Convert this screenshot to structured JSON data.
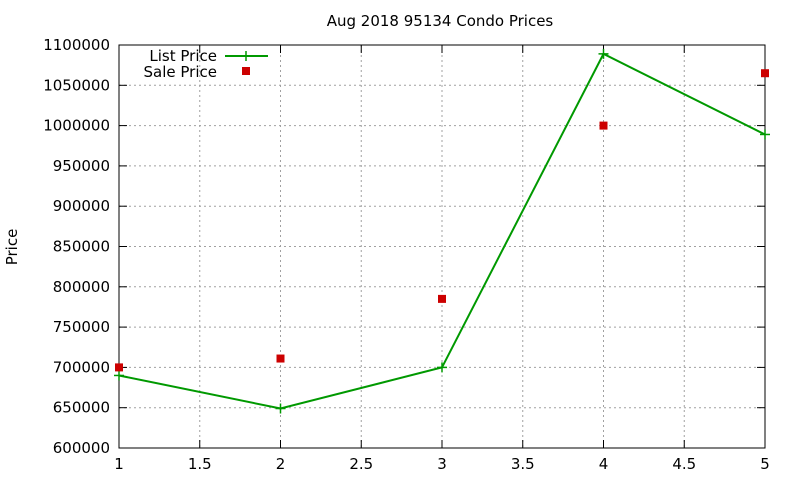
{
  "chart_data": {
    "type": "line",
    "title": "Aug 2018 95134 Condo Prices",
    "xlabel": "",
    "ylabel": "Price",
    "xlim": [
      1,
      5
    ],
    "ylim": [
      600000,
      1100000
    ],
    "x_ticks": [
      "1",
      "1.5",
      "2",
      "2.5",
      "3",
      "3.5",
      "4",
      "4.5",
      "5"
    ],
    "y_ticks": [
      "600000",
      "650000",
      "700000",
      "750000",
      "800000",
      "850000",
      "900000",
      "950000",
      "1000000",
      "1050000",
      "1100000"
    ],
    "grid": true,
    "legend_position": "top-left",
    "series": [
      {
        "name": "List Price",
        "style": "line-plus",
        "color": "#009900",
        "x": [
          1,
          2,
          3,
          4,
          5
        ],
        "y": [
          690000,
          649000,
          700000,
          1089000,
          989000
        ]
      },
      {
        "name": "Sale Price",
        "style": "square-points",
        "color": "#cc0000",
        "x": [
          1,
          2,
          3,
          4,
          5
        ],
        "y": [
          700000,
          711000,
          785000,
          1000000,
          1065000
        ]
      }
    ]
  }
}
